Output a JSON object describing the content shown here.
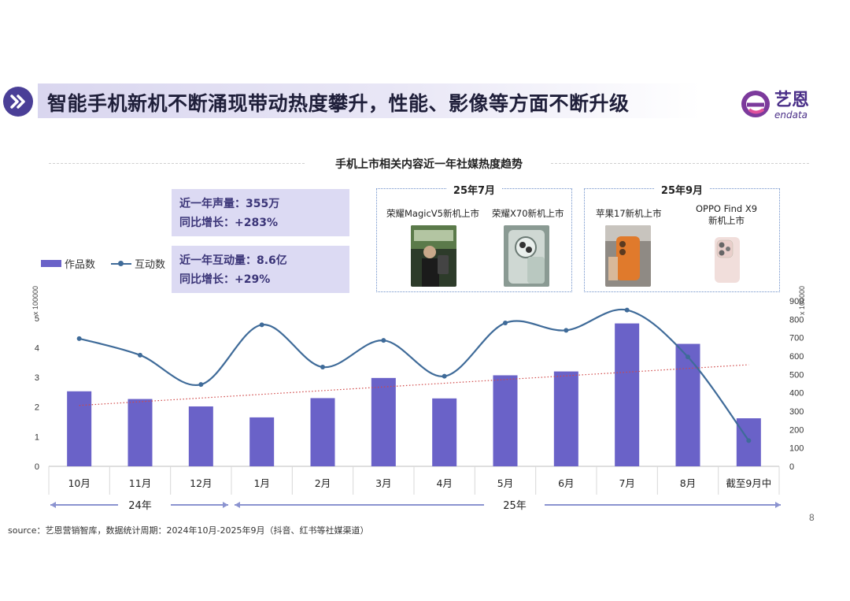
{
  "header": {
    "title": "智能手机新机不断涌现带动热度攀升，性能、影像等方面不断升级",
    "logo_text": "艺恩",
    "logo_subtext": "endata"
  },
  "chart_title": "手机上市相关内容近一年社媒热度趋势",
  "stats": {
    "volume_label": "近一年声量：355万",
    "volume_growth": "同比增长：+283%",
    "interaction_label": "近一年互动量：8.6亿",
    "interaction_growth": "同比增长：+29%"
  },
  "launches": [
    {
      "period": "25年7月",
      "items": [
        {
          "label": "荣耀MagicV5新机上市",
          "image": "phone-photo"
        },
        {
          "label": "荣耀X70新机上市",
          "image": "phone-photo"
        }
      ]
    },
    {
      "period": "25年9月",
      "items": [
        {
          "label": "苹果17新机上市",
          "image": "phone-photo"
        },
        {
          "label": "OPPO Find X9\n新机上市",
          "image": "phone-photo"
        }
      ]
    }
  ],
  "chart_data": {
    "type": "bar",
    "categories": [
      "10月",
      "11月",
      "12月",
      "1月",
      "2月",
      "3月",
      "4月",
      "5月",
      "6月",
      "7月",
      "8月",
      "截至9月中"
    ],
    "series": [
      {
        "name": "作品数",
        "type": "bar",
        "axis": "left",
        "color": "#6a62c8",
        "values": [
          2.53,
          2.27,
          2.02,
          1.65,
          2.3,
          2.98,
          2.29,
          3.07,
          3.2,
          4.82,
          4.13,
          1.62
        ]
      },
      {
        "name": "互动数",
        "type": "line",
        "axis": "right",
        "color": "#3f6b99",
        "values": [
          695,
          605,
          445,
          770,
          540,
          685,
          490,
          780,
          740,
          850,
          595,
          140
        ]
      }
    ],
    "trendline": {
      "series": "作品数",
      "style": "dotted",
      "color": "#d04848"
    },
    "left_axis": {
      "ticks": [
        "0",
        "1",
        "2",
        "3",
        "4",
        "5"
      ],
      "ylim": [
        0,
        5.5
      ],
      "unit_label": "x 100000"
    },
    "right_axis": {
      "ticks": [
        "0",
        "100",
        "200",
        "300",
        "400",
        "500",
        "600",
        "700",
        "800",
        "900"
      ],
      "ylim": [
        0,
        900
      ],
      "unit_label": "x 100000"
    },
    "legend": {
      "items": [
        "作品数",
        "互动数"
      ],
      "position": "top-left"
    },
    "periods": [
      {
        "label": "24年",
        "from": "10月",
        "to": "12月"
      },
      {
        "label": "25年",
        "from": "1月",
        "to": "截至9月中"
      }
    ]
  },
  "source": "source：艺恩营销智库，数据统计周期：2024年10月-2025年9月（抖音、红书等社媒渠道）",
  "page_number": "8"
}
